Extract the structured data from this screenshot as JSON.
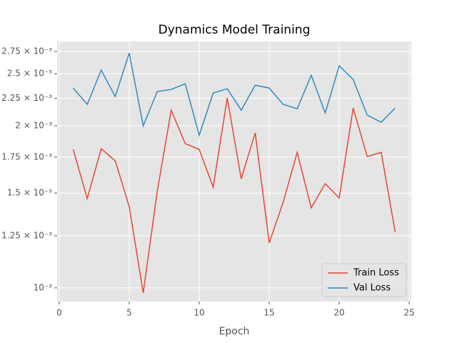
{
  "chart_data": {
    "type": "line",
    "title": "Dynamics Model Training",
    "x_label": "Epoch",
    "x": [
      1,
      2,
      3,
      4,
      5,
      6,
      7,
      8,
      9,
      10,
      11,
      12,
      13,
      14,
      15,
      16,
      17,
      18,
      19,
      20,
      21,
      22,
      23,
      24
    ],
    "series": [
      {
        "name": "Train Loss",
        "color": "#e24a33",
        "values": [
          0.001808,
          0.001465,
          0.001814,
          0.001722,
          0.001416,
          0.000979,
          0.00151,
          0.002139,
          0.001853,
          0.001808,
          0.001538,
          0.002253,
          0.001595,
          0.00194,
          0.001212,
          0.001443,
          0.001786,
          0.001408,
          0.001562,
          0.001469,
          0.002159,
          0.001754,
          0.001786,
          0.001269
        ]
      },
      {
        "name": "Val Loss",
        "color": "#348abd",
        "values": [
          0.002351,
          0.002192,
          0.002538,
          0.002267,
          0.002731,
          0.002,
          0.002316,
          0.002337,
          0.002395,
          0.001922,
          0.002302,
          0.002344,
          0.002139,
          0.00238,
          0.002351,
          0.002192,
          0.002152,
          0.002484,
          0.002113,
          0.002585,
          0.002439,
          0.002094,
          0.002031,
          0.002159
        ]
      }
    ],
    "xlim": [
      -0.15,
      25.15
    ],
    "xticks": [
      0,
      5,
      10,
      15,
      20,
      25
    ],
    "ylim": [
      0.000943,
      0.00287
    ],
    "log_y": true,
    "yticks": [
      {
        "value": 0.001,
        "label": "10⁻³"
      },
      {
        "value": 0.00125,
        "label": "1.25 × 10⁻³"
      },
      {
        "value": 0.0015,
        "label": "1.5 × 10⁻³"
      },
      {
        "value": 0.00175,
        "label": "1.75 × 10⁻³"
      },
      {
        "value": 0.002,
        "label": "2 × 10⁻³"
      },
      {
        "value": 0.00225,
        "label": "2.25 × 10⁻³"
      },
      {
        "value": 0.0025,
        "label": "2.5 × 10⁻³"
      },
      {
        "value": 0.00275,
        "label": "2.75 × 10⁻³"
      }
    ],
    "grid": true,
    "legend": "lower right"
  }
}
